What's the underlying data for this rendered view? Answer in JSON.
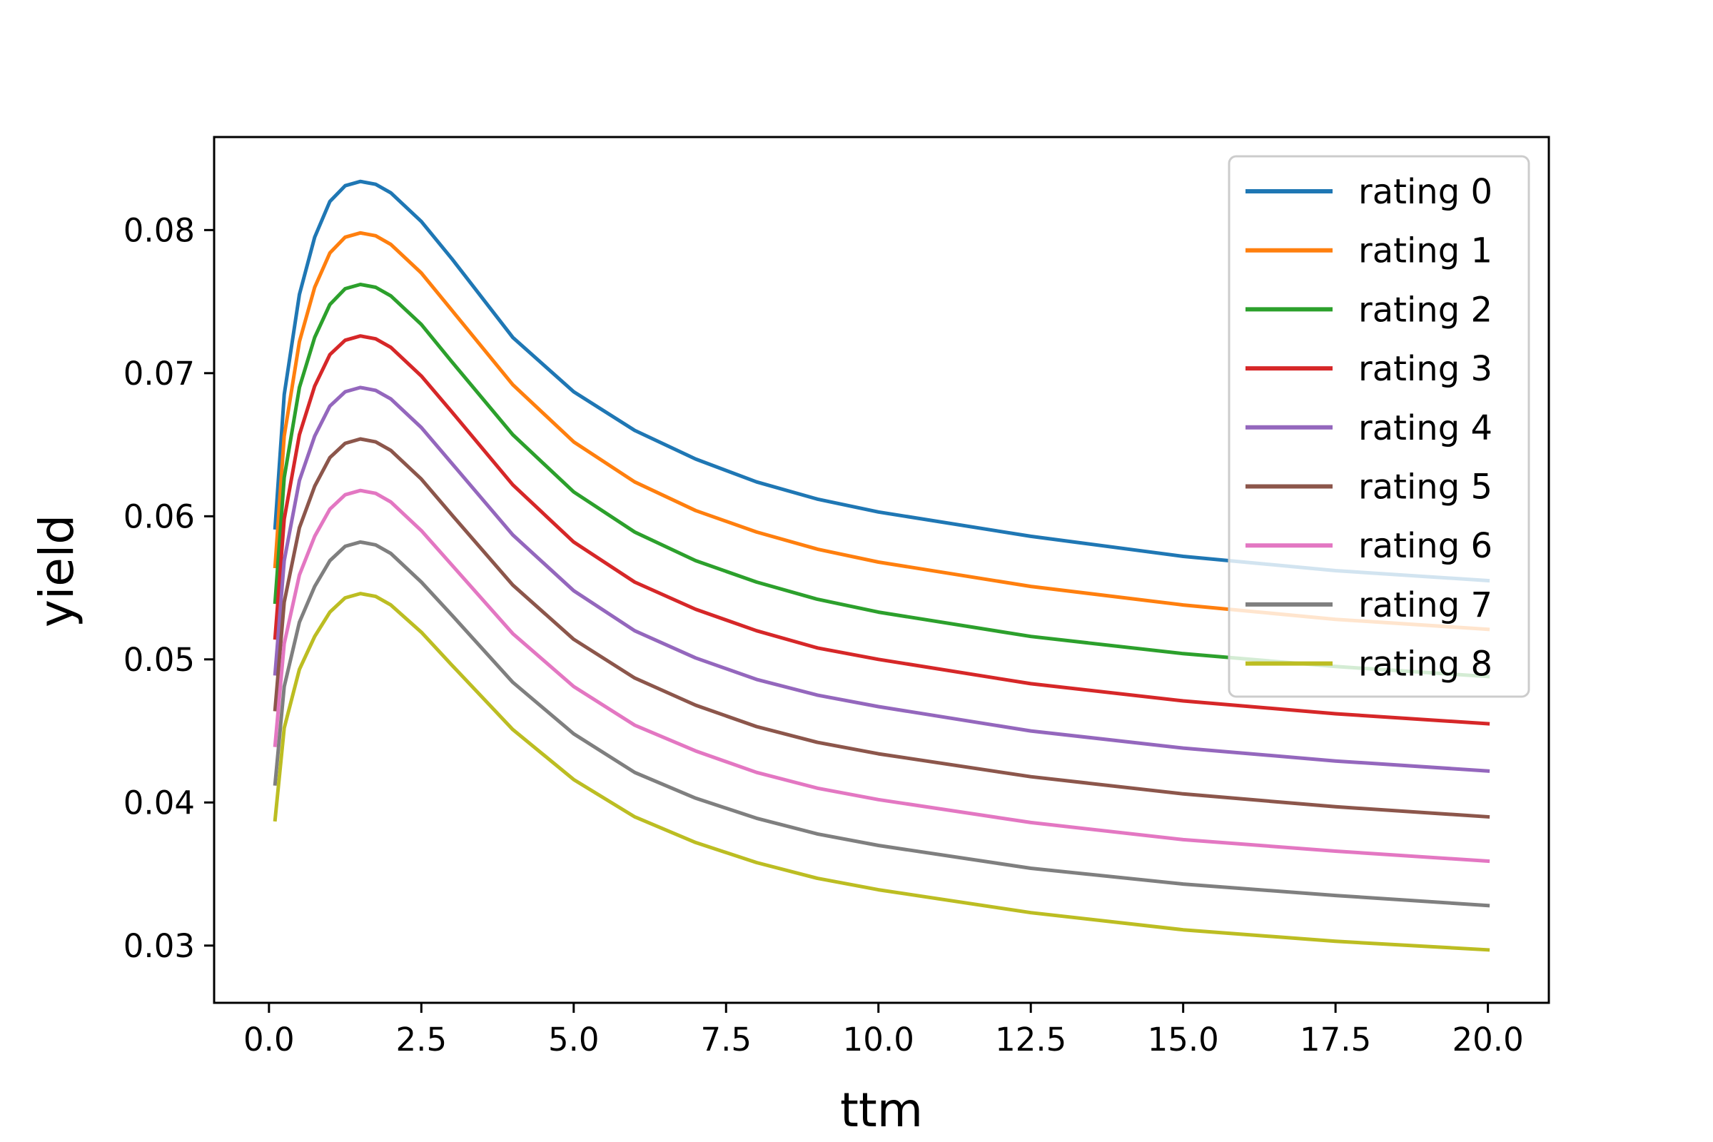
{
  "chart_data": {
    "type": "line",
    "title": "",
    "xlabel": "ttm",
    "ylabel": "yield",
    "xlim": [
      -0.9,
      21.0
    ],
    "ylim": [
      0.026,
      0.0865
    ],
    "xticks": [
      0.0,
      2.5,
      5.0,
      7.5,
      10.0,
      12.5,
      15.0,
      17.5,
      20.0
    ],
    "xtick_labels": [
      "0.0",
      "2.5",
      "5.0",
      "7.5",
      "10.0",
      "12.5",
      "15.0",
      "17.5",
      "20.0"
    ],
    "yticks": [
      0.03,
      0.04,
      0.05,
      0.06,
      0.07,
      0.08
    ],
    "ytick_labels": [
      "0.03",
      "0.04",
      "0.05",
      "0.06",
      "0.07",
      "0.08"
    ],
    "grid": false,
    "legend_position": "top-right",
    "x": [
      0.1,
      0.25,
      0.5,
      0.75,
      1.0,
      1.25,
      1.5,
      1.75,
      2.0,
      2.5,
      3.0,
      4.0,
      5.0,
      6.0,
      7.0,
      8.0,
      9.0,
      10.0,
      12.5,
      15.0,
      17.5,
      20.0
    ],
    "series": [
      {
        "name": "rating 0",
        "color": "#1f77b4",
        "values": [
          0.0592,
          0.0685,
          0.0755,
          0.0795,
          0.082,
          0.0831,
          0.0834,
          0.0832,
          0.0826,
          0.0806,
          0.078,
          0.0725,
          0.0687,
          0.066,
          0.064,
          0.0624,
          0.0612,
          0.0603,
          0.0586,
          0.0572,
          0.0562,
          0.0555
        ]
      },
      {
        "name": "rating 1",
        "color": "#ff7f0e",
        "values": [
          0.0565,
          0.0656,
          0.0722,
          0.076,
          0.0784,
          0.0795,
          0.0798,
          0.0796,
          0.079,
          0.077,
          0.0744,
          0.0692,
          0.0652,
          0.0624,
          0.0604,
          0.0589,
          0.0577,
          0.0568,
          0.0551,
          0.0538,
          0.0528,
          0.0521
        ]
      },
      {
        "name": "rating 2",
        "color": "#2ca02c",
        "values": [
          0.054,
          0.0627,
          0.069,
          0.0725,
          0.0748,
          0.0759,
          0.0762,
          0.076,
          0.0754,
          0.0734,
          0.0708,
          0.0657,
          0.0617,
          0.0589,
          0.0569,
          0.0554,
          0.0542,
          0.0533,
          0.0516,
          0.0504,
          0.0495,
          0.0488
        ]
      },
      {
        "name": "rating 3",
        "color": "#d62728",
        "values": [
          0.0515,
          0.0598,
          0.0657,
          0.0691,
          0.0713,
          0.0723,
          0.0726,
          0.0724,
          0.0718,
          0.0698,
          0.0673,
          0.0622,
          0.0582,
          0.0554,
          0.0535,
          0.052,
          0.0508,
          0.05,
          0.0483,
          0.0471,
          0.0462,
          0.0455
        ]
      },
      {
        "name": "rating 4",
        "color": "#9467bd",
        "values": [
          0.049,
          0.0569,
          0.0625,
          0.0656,
          0.0677,
          0.0687,
          0.069,
          0.0688,
          0.0682,
          0.0662,
          0.0637,
          0.0587,
          0.0548,
          0.052,
          0.0501,
          0.0486,
          0.0475,
          0.0467,
          0.045,
          0.0438,
          0.0429,
          0.0422
        ]
      },
      {
        "name": "rating 5",
        "color": "#8c564b",
        "values": [
          0.0465,
          0.054,
          0.0592,
          0.0621,
          0.0641,
          0.0651,
          0.0654,
          0.0652,
          0.0646,
          0.0626,
          0.0601,
          0.0552,
          0.0514,
          0.0487,
          0.0468,
          0.0453,
          0.0442,
          0.0434,
          0.0418,
          0.0406,
          0.0397,
          0.039
        ]
      },
      {
        "name": "rating 6",
        "color": "#e377c2",
        "values": [
          0.044,
          0.0511,
          0.0559,
          0.0586,
          0.0605,
          0.0615,
          0.0618,
          0.0616,
          0.061,
          0.059,
          0.0566,
          0.0518,
          0.0481,
          0.0454,
          0.0436,
          0.0421,
          0.041,
          0.0402,
          0.0386,
          0.0374,
          0.0366,
          0.0359
        ]
      },
      {
        "name": "rating 7",
        "color": "#7f7f7f",
        "values": [
          0.0413,
          0.0481,
          0.0526,
          0.0551,
          0.0569,
          0.0579,
          0.0582,
          0.058,
          0.0574,
          0.0554,
          0.0531,
          0.0484,
          0.0448,
          0.0421,
          0.0403,
          0.0389,
          0.0378,
          0.037,
          0.0354,
          0.0343,
          0.0335,
          0.0328
        ]
      },
      {
        "name": "rating 8",
        "color": "#bcbd22",
        "values": [
          0.0388,
          0.0452,
          0.0493,
          0.0516,
          0.0533,
          0.0543,
          0.0546,
          0.0544,
          0.0538,
          0.0519,
          0.0496,
          0.0451,
          0.0416,
          0.039,
          0.0372,
          0.0358,
          0.0347,
          0.0339,
          0.0323,
          0.0311,
          0.0303,
          0.0297
        ]
      }
    ]
  }
}
